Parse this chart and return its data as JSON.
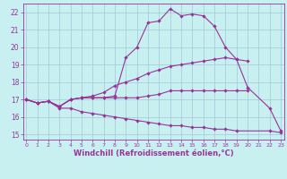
{
  "background_color": "#c8f0f0",
  "grid_color": "#a0c8d8",
  "line_color": "#993399",
  "xlabel": "Windchill (Refroidissement éolien,°C)",
  "xlabel_fontsize": 6.0,
  "ytick_labels": [
    "15",
    "16",
    "17",
    "18",
    "19",
    "20",
    "21",
    "22"
  ],
  "yticks": [
    15,
    16,
    17,
    18,
    19,
    20,
    21,
    22
  ],
  "xticks": [
    0,
    1,
    2,
    3,
    4,
    5,
    6,
    7,
    8,
    9,
    10,
    11,
    12,
    13,
    14,
    15,
    16,
    17,
    18,
    19,
    20,
    21,
    22,
    23
  ],
  "xlim": [
    -0.3,
    23.3
  ],
  "ylim": [
    14.7,
    22.5
  ],
  "series": [
    {
      "x": [
        0,
        1,
        2,
        3,
        4,
        5,
        6,
        7,
        8,
        9,
        10,
        11,
        12,
        13,
        14,
        15,
        16,
        17,
        18,
        19,
        20,
        22,
        23
      ],
      "y": [
        17.0,
        16.8,
        16.9,
        16.6,
        17.0,
        17.1,
        17.1,
        17.1,
        17.2,
        19.4,
        20.0,
        21.4,
        21.5,
        22.2,
        21.8,
        21.9,
        21.8,
        21.2,
        20.0,
        19.3,
        17.7,
        16.5,
        15.2
      ]
    },
    {
      "x": [
        0,
        1,
        2,
        3,
        4,
        5,
        6,
        7,
        8,
        9,
        10,
        11,
        12,
        13,
        14,
        15,
        16,
        17,
        18,
        19,
        20
      ],
      "y": [
        17.0,
        16.8,
        16.9,
        16.6,
        17.0,
        17.1,
        17.2,
        17.4,
        17.8,
        18.0,
        18.2,
        18.5,
        18.7,
        18.9,
        19.0,
        19.1,
        19.2,
        19.3,
        19.4,
        19.3,
        19.2
      ]
    },
    {
      "x": [
        0,
        1,
        2,
        3,
        4,
        5,
        6,
        7,
        8,
        9,
        10,
        11,
        12,
        13,
        14,
        15,
        16,
        17,
        18,
        19,
        20
      ],
      "y": [
        17.0,
        16.8,
        16.9,
        16.6,
        17.0,
        17.1,
        17.1,
        17.1,
        17.1,
        17.1,
        17.1,
        17.2,
        17.3,
        17.5,
        17.5,
        17.5,
        17.5,
        17.5,
        17.5,
        17.5,
        17.5
      ]
    },
    {
      "x": [
        0,
        1,
        2,
        3,
        4,
        5,
        6,
        7,
        8,
        9,
        10,
        11,
        12,
        13,
        14,
        15,
        16,
        17,
        18,
        19,
        22,
        23
      ],
      "y": [
        17.0,
        16.8,
        16.9,
        16.5,
        16.5,
        16.3,
        16.2,
        16.1,
        16.0,
        15.9,
        15.8,
        15.7,
        15.6,
        15.5,
        15.5,
        15.4,
        15.4,
        15.3,
        15.3,
        15.2,
        15.2,
        15.1
      ]
    }
  ]
}
